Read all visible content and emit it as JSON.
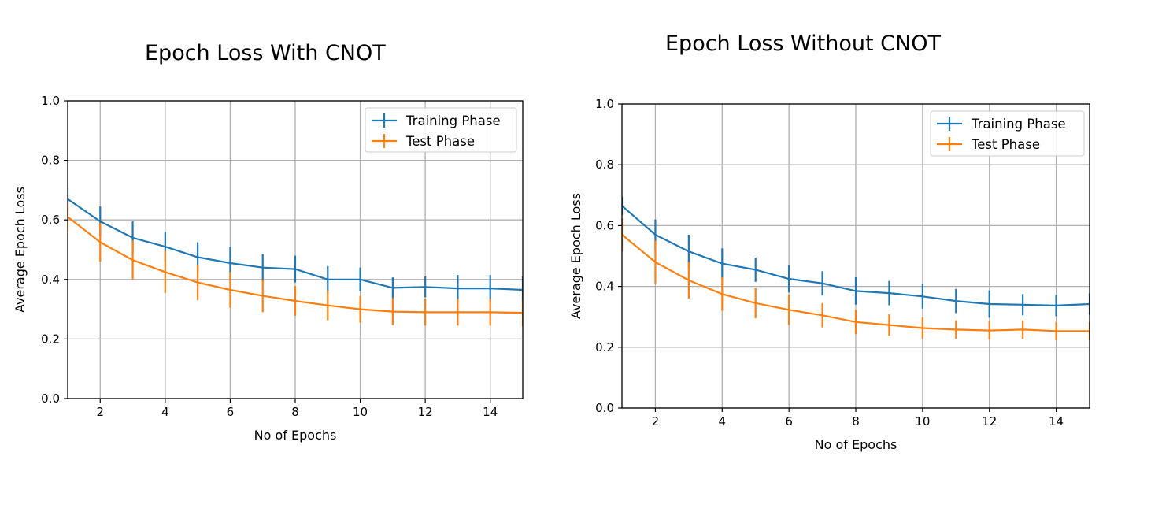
{
  "chart_data": [
    {
      "type": "line",
      "title": "Epoch Loss With CNOT",
      "xlabel": "No of Epochs",
      "ylabel": "Average Epoch Loss",
      "xlim": [
        1,
        15
      ],
      "ylim": [
        0.0,
        1.0
      ],
      "xticks": [
        "2",
        "4",
        "6",
        "8",
        "10",
        "12",
        "14"
      ],
      "yticks": [
        "0.0",
        "0.2",
        "0.4",
        "0.6",
        "0.8",
        "1.0"
      ],
      "grid": true,
      "legend_position": "top-right",
      "x": [
        1,
        2,
        3,
        4,
        5,
        6,
        7,
        8,
        9,
        10,
        11,
        12,
        13,
        14,
        15
      ],
      "series": [
        {
          "name": "Training Phase",
          "color": "#1f77b4",
          "values": [
            0.67,
            0.595,
            0.54,
            0.51,
            0.475,
            0.455,
            0.44,
            0.435,
            0.4,
            0.4,
            0.372,
            0.375,
            0.37,
            0.37,
            0.365
          ],
          "errors": [
            0.035,
            0.05,
            0.055,
            0.05,
            0.05,
            0.055,
            0.045,
            0.045,
            0.045,
            0.04,
            0.035,
            0.035,
            0.045,
            0.045,
            0.045
          ]
        },
        {
          "name": "Test Phase",
          "color": "#ff7f0e",
          "values": [
            0.61,
            0.525,
            0.465,
            0.425,
            0.39,
            0.365,
            0.345,
            0.328,
            0.313,
            0.3,
            0.292,
            0.29,
            0.29,
            0.29,
            0.288
          ],
          "errors": [
            0.05,
            0.065,
            0.065,
            0.07,
            0.06,
            0.06,
            0.055,
            0.05,
            0.05,
            0.045,
            0.045,
            0.045,
            0.045,
            0.045,
            0.045
          ]
        }
      ]
    },
    {
      "type": "line",
      "title": "Epoch Loss Without CNOT",
      "xlabel": "No of Epochs",
      "ylabel": "Average Epoch Loss",
      "xlim": [
        1,
        15
      ],
      "ylim": [
        0.0,
        1.0
      ],
      "xticks": [
        "2",
        "4",
        "6",
        "8",
        "10",
        "12",
        "14"
      ],
      "yticks": [
        "0.0",
        "0.2",
        "0.4",
        "0.6",
        "0.8",
        "1.0"
      ],
      "grid": true,
      "legend_position": "top-right",
      "x": [
        1,
        2,
        3,
        4,
        5,
        6,
        7,
        8,
        9,
        10,
        11,
        12,
        13,
        14,
        15
      ],
      "series": [
        {
          "name": "Training Phase",
          "color": "#1f77b4",
          "values": [
            0.665,
            0.57,
            0.515,
            0.475,
            0.455,
            0.425,
            0.41,
            0.385,
            0.378,
            0.367,
            0.352,
            0.342,
            0.34,
            0.337,
            0.342
          ],
          "errors": [
            0.03,
            0.05,
            0.055,
            0.05,
            0.04,
            0.045,
            0.04,
            0.045,
            0.04,
            0.04,
            0.04,
            0.045,
            0.035,
            0.035,
            0.035
          ]
        },
        {
          "name": "Test Phase",
          "color": "#ff7f0e",
          "values": [
            0.57,
            0.48,
            0.42,
            0.375,
            0.345,
            0.323,
            0.305,
            0.283,
            0.273,
            0.263,
            0.258,
            0.255,
            0.258,
            0.253,
            0.253
          ],
          "errors": [
            0.055,
            0.07,
            0.06,
            0.055,
            0.05,
            0.05,
            0.04,
            0.04,
            0.035,
            0.035,
            0.03,
            0.03,
            0.03,
            0.03,
            0.03
          ]
        }
      ]
    }
  ]
}
